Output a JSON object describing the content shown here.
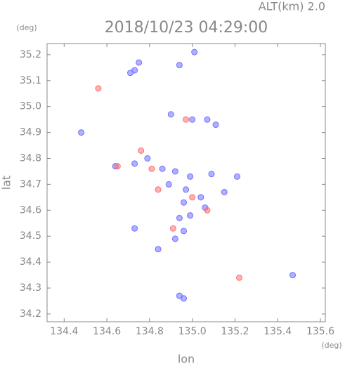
{
  "chart_data": {
    "type": "scatter",
    "title": "2018/10/23 04:29:00",
    "annotation": "ALT(km) 2.0",
    "x_label": "lon",
    "y_label": "lat",
    "x_unit": "(deg)",
    "y_unit": "(deg)",
    "xlim": [
      134.32,
      135.623
    ],
    "ylim": [
      34.17,
      35.243
    ],
    "xticks": [
      134.4,
      134.6,
      134.8,
      {
        "value": 135,
        "label": "135.0"
      },
      135.2,
      135.4,
      135.6
    ],
    "yticks": [
      34.2,
      34.3,
      34.4,
      34.5,
      34.6,
      34.7,
      34.8,
      34.9,
      {
        "value": 35,
        "label": "35.0"
      },
      35.1,
      35.2
    ],
    "series": [
      {
        "color": "#7070ff",
        "x": [
          134.73,
          134.71,
          134.75,
          134.94,
          135.01,
          134.9,
          135.0,
          135.07,
          135.11,
          134.48,
          134.64,
          134.73,
          134.79,
          134.86,
          134.92,
          134.99,
          135.09,
          134.89,
          134.97,
          135.04,
          134.96,
          135.06,
          134.94,
          134.99,
          134.96,
          134.92,
          134.73,
          134.84,
          134.94,
          134.96,
          135.47,
          135.21,
          135.15
        ],
        "values": [
          35.14,
          35.13,
          35.17,
          35.16,
          35.21,
          34.97,
          34.95,
          34.95,
          34.93,
          34.9,
          34.77,
          34.78,
          34.8,
          34.76,
          34.75,
          34.73,
          34.74,
          34.7,
          34.68,
          34.65,
          34.63,
          34.61,
          34.57,
          34.58,
          34.52,
          34.49,
          34.53,
          34.45,
          34.27,
          34.26,
          34.35,
          34.73,
          34.67
        ]
      },
      {
        "color": "#ff7070",
        "x": [
          134.56,
          134.65,
          134.81,
          134.84,
          135.0,
          134.91,
          135.22,
          135.07,
          134.76,
          134.97
        ],
        "values": [
          35.07,
          34.77,
          34.76,
          34.68,
          34.65,
          34.53,
          34.34,
          34.6,
          34.83,
          34.95
        ]
      }
    ]
  }
}
